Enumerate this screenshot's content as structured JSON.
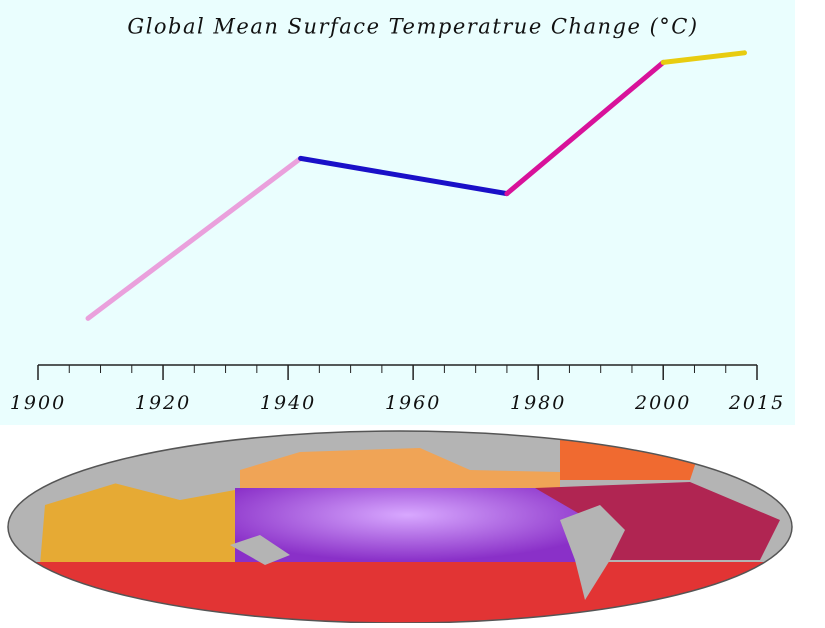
{
  "chart_data": {
    "type": "line",
    "title": "Global Mean Surface Temperatrue Change (°C)",
    "xlim": [
      1900,
      2015
    ],
    "xticks": [
      1900,
      1920,
      1940,
      1960,
      1980,
      2000,
      2015
    ],
    "xminorticks": [
      1905,
      1910,
      1915,
      1925,
      1930,
      1935,
      1945,
      1950,
      1955,
      1965,
      1970,
      1975,
      1985,
      1990,
      1995,
      2005,
      2010
    ],
    "ylim": [
      0,
      1
    ],
    "series": [
      {
        "color": "#eaa0dc",
        "x": [
          1908,
          1942
        ],
        "values": [
          0.13,
          0.63
        ]
      },
      {
        "color": "#1a10c8",
        "x": [
          1942,
          1975
        ],
        "values": [
          0.63,
          0.52
        ]
      },
      {
        "color": "#d8129a",
        "x": [
          1975,
          2000
        ],
        "values": [
          0.52,
          0.93
        ]
      },
      {
        "color": "#e8cc10",
        "x": [
          2000,
          2013
        ],
        "values": [
          0.93,
          0.96
        ]
      }
    ]
  }
}
